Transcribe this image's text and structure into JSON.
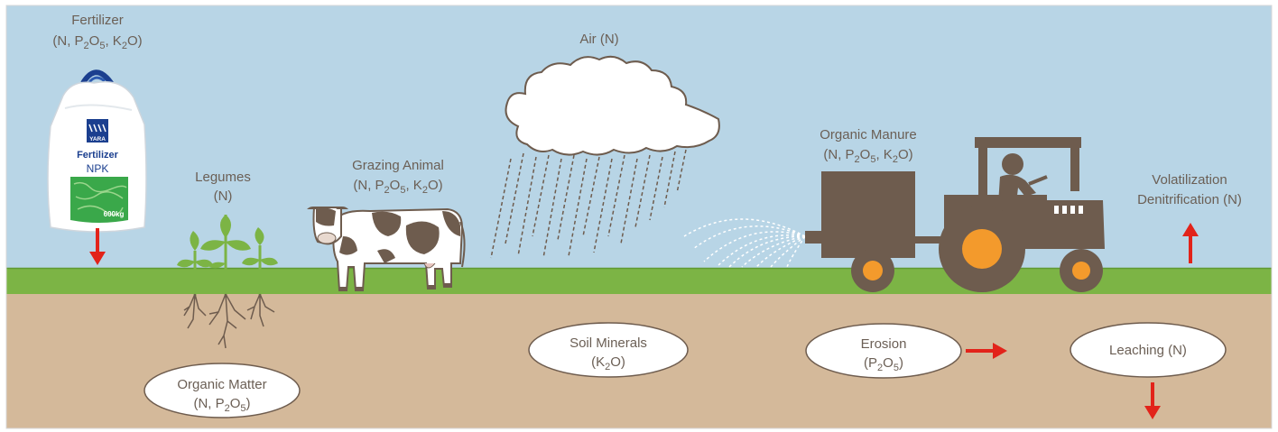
{
  "colors": {
    "sky": "#b8d5e6",
    "grass": "#7cb445",
    "soil": "#d4b99a",
    "machine": "#6e5c4e",
    "wheel_hub": "#f39a2c",
    "arrow": "#e2231a",
    "text": "#6b5f55",
    "brand_blue": "#1b3f8f",
    "bag_green": "#3aa84a"
  },
  "inputs": {
    "fertilizer": {
      "name": "Fertilizer",
      "formula": [
        "(N, P",
        "2",
        "O",
        "5",
        ", K",
        "2",
        "O)"
      ]
    },
    "legumes": {
      "name": "Legumes",
      "formula": "(N)"
    },
    "grazing_animal": {
      "name": "Grazing Animal",
      "formula": [
        "(N, P",
        "2",
        "O",
        "5",
        ", K",
        "2",
        "O)"
      ]
    },
    "air": {
      "name": "Air (N)"
    },
    "organic_manure": {
      "name": "Organic Manure",
      "formula": [
        "(N, P",
        "2",
        "O",
        "5",
        ", K",
        "2",
        "O)"
      ]
    }
  },
  "losses": {
    "volatilization": {
      "line1": "Volatilization",
      "line2": "Denitrification (N)"
    },
    "erosion": {
      "name": "Erosion",
      "formula": [
        "(P",
        "2",
        "O",
        "5",
        ")"
      ]
    },
    "leaching": {
      "name": "Leaching (N)"
    }
  },
  "soil_pools": {
    "organic_matter": {
      "name": "Organic Matter",
      "formula": [
        "(N, P",
        "2",
        "O",
        "5",
        ")"
      ]
    },
    "soil_minerals": {
      "name": "Soil Minerals",
      "formula": [
        "(K",
        "2",
        "O)"
      ]
    }
  },
  "fertilizer_bag": {
    "brand": "YARA",
    "product": "Fertilizer",
    "grade": "NPK",
    "weight": "600kg"
  },
  "icons": [
    "fertilizer-bag-icon",
    "legume-plant-icon",
    "cow-icon",
    "rain-cloud-icon",
    "tractor-icon",
    "manure-spreader-icon",
    "arrow-icon"
  ]
}
